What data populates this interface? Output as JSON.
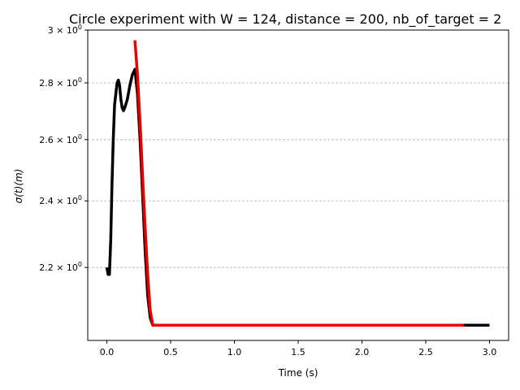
{
  "chart_data": {
    "type": "line",
    "title": "Circle experiment with W = 124, distance = 200, nb_of_target = 2",
    "xlabel": "Time (s)",
    "ylabel": "σ(t)(m)",
    "yscale": "log",
    "xlim": [
      -0.15,
      3.15
    ],
    "ylim": [
      2.0,
      3.0
    ],
    "grid": "y-major-dashed",
    "x_ticks": [
      {
        "value": 0.0,
        "label": "0.0"
      },
      {
        "value": 0.5,
        "label": "0.5"
      },
      {
        "value": 1.0,
        "label": "1.0"
      },
      {
        "value": 1.5,
        "label": "1.5"
      },
      {
        "value": 2.0,
        "label": "2.0"
      },
      {
        "value": 2.5,
        "label": "2.5"
      },
      {
        "value": 3.0,
        "label": "3.0"
      }
    ],
    "y_ticks": [
      {
        "value": 2.2,
        "mantissa": "2.2",
        "base": "10",
        "exp": "0"
      },
      {
        "value": 2.4,
        "mantissa": "2.4",
        "base": "10",
        "exp": "0"
      },
      {
        "value": 2.6,
        "mantissa": "2.6",
        "base": "10",
        "exp": "0"
      },
      {
        "value": 2.8,
        "mantissa": "2.8",
        "base": "10",
        "exp": "0"
      },
      {
        "value": 3.0,
        "mantissa": "3",
        "base": "10",
        "exp": "0"
      }
    ],
    "series": [
      {
        "color": "#000000",
        "x": [
          0.0,
          0.01,
          0.02,
          0.03,
          0.04,
          0.05,
          0.06,
          0.08,
          0.09,
          0.1,
          0.11,
          0.12,
          0.13,
          0.14,
          0.16,
          0.18,
          0.2,
          0.22,
          0.24,
          0.26,
          0.28,
          0.3,
          0.32,
          0.34,
          0.36,
          0.38,
          0.4,
          0.5,
          1.0,
          1.5,
          2.0,
          2.5,
          3.0
        ],
        "y": [
          2.2,
          2.18,
          2.18,
          2.28,
          2.45,
          2.6,
          2.72,
          2.8,
          2.81,
          2.79,
          2.74,
          2.71,
          2.7,
          2.71,
          2.74,
          2.79,
          2.83,
          2.85,
          2.76,
          2.6,
          2.42,
          2.25,
          2.12,
          2.06,
          2.04,
          2.04,
          2.04,
          2.04,
          2.04,
          2.04,
          2.04,
          2.04,
          2.04
        ]
      },
      {
        "color": "#ee0000",
        "x": [
          0.22,
          0.24,
          0.26,
          0.28,
          0.3,
          0.32,
          0.34,
          0.36,
          0.38,
          0.4,
          0.5,
          1.0,
          1.5,
          2.0,
          2.5,
          2.8
        ],
        "y": [
          2.96,
          2.83,
          2.66,
          2.48,
          2.32,
          2.18,
          2.08,
          2.04,
          2.04,
          2.04,
          2.04,
          2.04,
          2.04,
          2.04,
          2.04,
          2.04
        ]
      }
    ]
  }
}
